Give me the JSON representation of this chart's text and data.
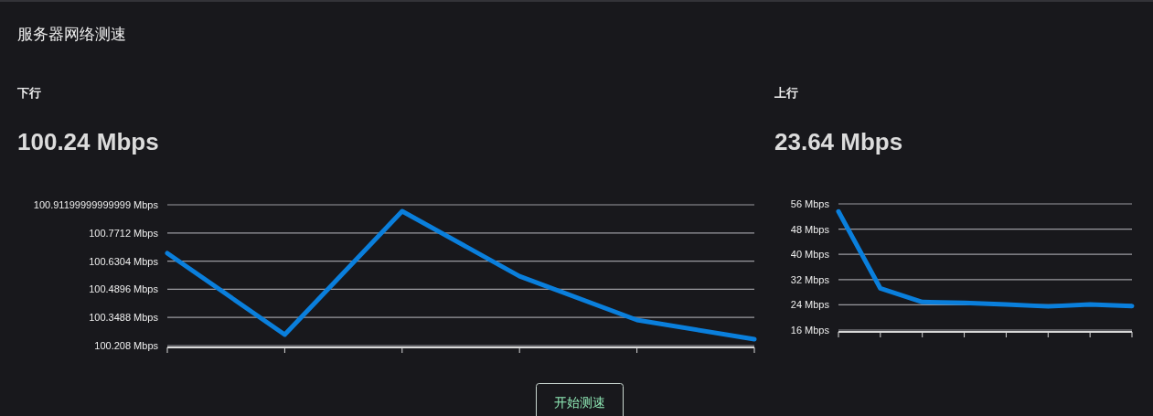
{
  "chart_data": [
    {
      "type": "other",
      "title": "服务器网络测速",
      "annotations": [
        "开始测速"
      ]
    },
    {
      "type": "line",
      "title": "下行",
      "subtitle": "100.24 Mbps",
      "categories": [
        null,
        null,
        null,
        null,
        null,
        null
      ],
      "ylim": [
        100.208,
        100.912
      ],
      "yticks": [
        {
          "value": 100.208,
          "label": "100.208 Mbps"
        },
        {
          "value": 100.3488,
          "label": "100.3488 Mbps"
        },
        {
          "value": 100.4896,
          "label": "100.4896 Mbps"
        },
        {
          "value": 100.6304,
          "label": "100.6304 Mbps"
        },
        {
          "value": 100.7712,
          "label": "100.7712 Mbps"
        },
        {
          "value": 100.912,
          "label": "100.91199999999999 Mbps"
        }
      ],
      "grid": "y",
      "line_style": "solid",
      "series": [
        {
          "color": "#0a7fdc",
          "values": [
            100.67,
            100.263,
            100.88,
            100.555,
            100.336,
            100.24
          ]
        }
      ]
    },
    {
      "type": "line",
      "title": "上行",
      "subtitle": "23.64 Mbps",
      "categories": [
        null,
        null,
        null,
        null,
        null,
        null,
        null,
        null
      ],
      "ylim": [
        16,
        56
      ],
      "yticks": [
        {
          "value": 16,
          "label": "16 Mbps"
        },
        {
          "value": 24,
          "label": "24 Mbps"
        },
        {
          "value": 32,
          "label": "32 Mbps"
        },
        {
          "value": 40,
          "label": "40 Mbps"
        },
        {
          "value": 48,
          "label": "48 Mbps"
        },
        {
          "value": 56,
          "label": "56 Mbps"
        }
      ],
      "grid": "y",
      "line_style": "solid",
      "series": [
        {
          "color": "#0a7fdc",
          "values": [
            53.6,
            29.2,
            24.9,
            24.6,
            24.1,
            23.5,
            24.1,
            23.64
          ]
        }
      ]
    }
  ]
}
